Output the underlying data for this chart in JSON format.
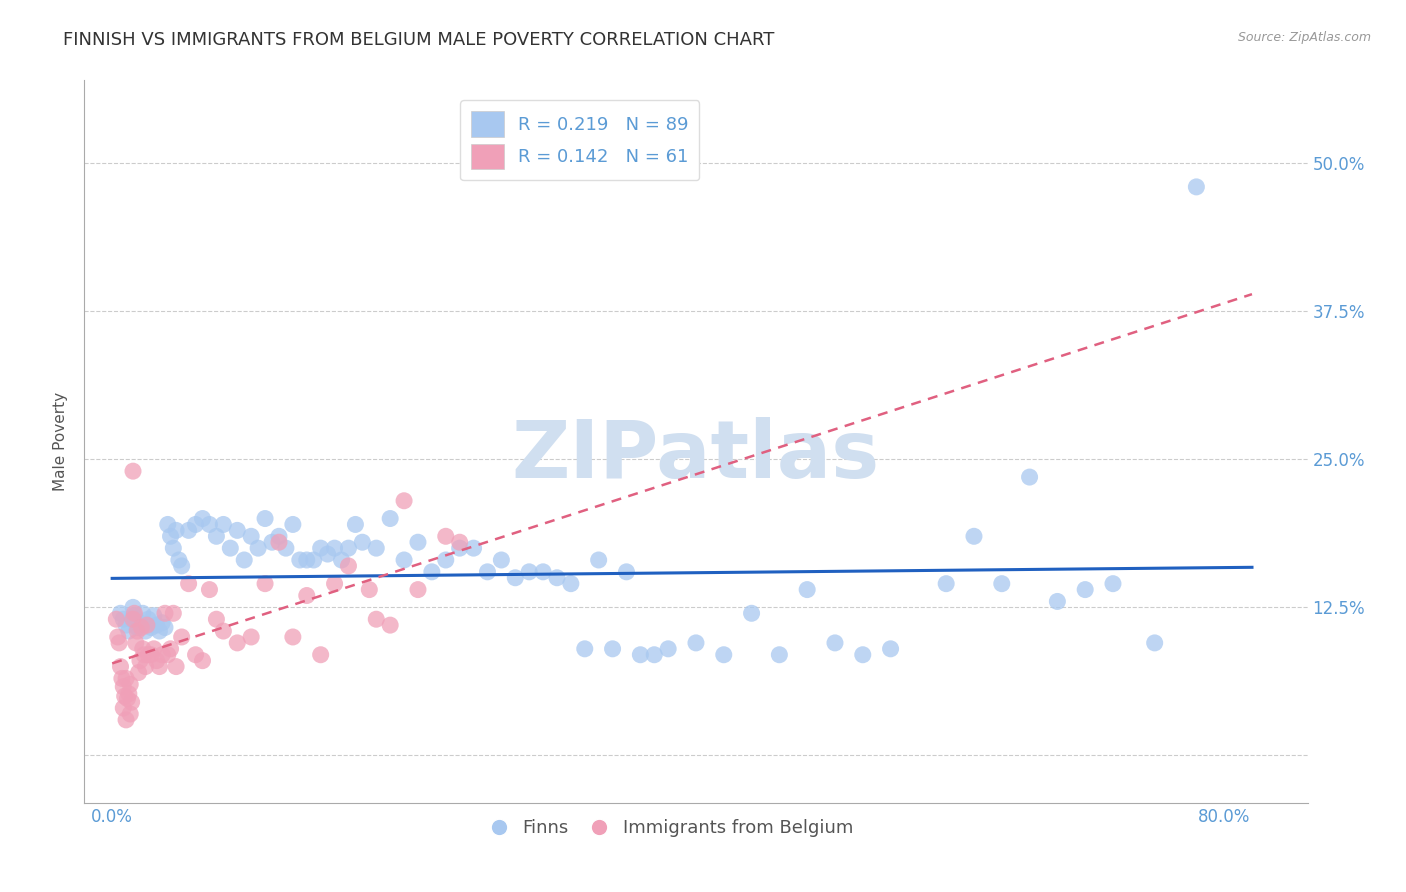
{
  "title": "FINNISH VS IMMIGRANTS FROM BELGIUM MALE POVERTY CORRELATION CHART",
  "source": "Source: ZipAtlas.com",
  "ylabel": "Male Poverty",
  "x_ticks": [
    0.0,
    0.1,
    0.2,
    0.3,
    0.4,
    0.5,
    0.6,
    0.7,
    0.8
  ],
  "y_ticks": [
    0.0,
    0.125,
    0.25,
    0.375,
    0.5
  ],
  "y_tick_labels": [
    "",
    "12.5%",
    "25.0%",
    "37.5%",
    "50.0%"
  ],
  "xlim": [
    -0.02,
    0.86
  ],
  "ylim": [
    -0.04,
    0.57
  ],
  "blue_color": "#A8C8F0",
  "pink_color": "#F0A0B8",
  "blue_line_color": "#2060C0",
  "pink_line_color": "#E06080",
  "watermark": "ZIPatlas",
  "watermark_color": "#D0DFF0",
  "title_fontsize": 13,
  "axis_label_fontsize": 11,
  "tick_fontsize": 12,
  "figsize": [
    14.06,
    8.92
  ],
  "dpi": 100,
  "blue_scatter_x": [
    0.006,
    0.008,
    0.01,
    0.012,
    0.014,
    0.015,
    0.016,
    0.018,
    0.02,
    0.022,
    0.024,
    0.026,
    0.028,
    0.03,
    0.032,
    0.034,
    0.036,
    0.038,
    0.04,
    0.042,
    0.044,
    0.046,
    0.048,
    0.05,
    0.055,
    0.06,
    0.065,
    0.07,
    0.075,
    0.08,
    0.085,
    0.09,
    0.095,
    0.1,
    0.105,
    0.11,
    0.115,
    0.12,
    0.125,
    0.13,
    0.135,
    0.14,
    0.145,
    0.15,
    0.155,
    0.16,
    0.165,
    0.17,
    0.175,
    0.18,
    0.19,
    0.2,
    0.21,
    0.22,
    0.23,
    0.24,
    0.25,
    0.26,
    0.27,
    0.28,
    0.29,
    0.3,
    0.31,
    0.32,
    0.33,
    0.34,
    0.35,
    0.36,
    0.37,
    0.38,
    0.39,
    0.4,
    0.42,
    0.44,
    0.46,
    0.48,
    0.5,
    0.52,
    0.54,
    0.56,
    0.6,
    0.62,
    0.64,
    0.66,
    0.68,
    0.7,
    0.72,
    0.75,
    0.78
  ],
  "blue_scatter_y": [
    0.12,
    0.115,
    0.11,
    0.105,
    0.115,
    0.125,
    0.118,
    0.108,
    0.112,
    0.12,
    0.105,
    0.115,
    0.108,
    0.118,
    0.11,
    0.105,
    0.112,
    0.108,
    0.195,
    0.185,
    0.175,
    0.19,
    0.165,
    0.16,
    0.19,
    0.195,
    0.2,
    0.195,
    0.185,
    0.195,
    0.175,
    0.19,
    0.165,
    0.185,
    0.175,
    0.2,
    0.18,
    0.185,
    0.175,
    0.195,
    0.165,
    0.165,
    0.165,
    0.175,
    0.17,
    0.175,
    0.165,
    0.175,
    0.195,
    0.18,
    0.175,
    0.2,
    0.165,
    0.18,
    0.155,
    0.165,
    0.175,
    0.175,
    0.155,
    0.165,
    0.15,
    0.155,
    0.155,
    0.15,
    0.145,
    0.09,
    0.165,
    0.09,
    0.155,
    0.085,
    0.085,
    0.09,
    0.095,
    0.085,
    0.12,
    0.085,
    0.14,
    0.095,
    0.085,
    0.09,
    0.145,
    0.185,
    0.145,
    0.235,
    0.13,
    0.14,
    0.145,
    0.095,
    0.48
  ],
  "pink_scatter_x": [
    0.003,
    0.004,
    0.005,
    0.006,
    0.007,
    0.008,
    0.008,
    0.009,
    0.01,
    0.01,
    0.011,
    0.012,
    0.013,
    0.013,
    0.014,
    0.015,
    0.015,
    0.016,
    0.017,
    0.018,
    0.019,
    0.02,
    0.021,
    0.022,
    0.023,
    0.024,
    0.025,
    0.026,
    0.028,
    0.03,
    0.032,
    0.034,
    0.036,
    0.038,
    0.04,
    0.042,
    0.044,
    0.046,
    0.05,
    0.055,
    0.06,
    0.065,
    0.07,
    0.075,
    0.08,
    0.09,
    0.1,
    0.11,
    0.12,
    0.13,
    0.14,
    0.15,
    0.16,
    0.17,
    0.185,
    0.19,
    0.2,
    0.21,
    0.22,
    0.24,
    0.25
  ],
  "pink_scatter_y": [
    0.115,
    0.1,
    0.095,
    0.075,
    0.065,
    0.058,
    0.04,
    0.05,
    0.03,
    0.065,
    0.048,
    0.052,
    0.035,
    0.06,
    0.045,
    0.24,
    0.115,
    0.12,
    0.095,
    0.105,
    0.07,
    0.08,
    0.108,
    0.09,
    0.085,
    0.075,
    0.11,
    0.085,
    0.085,
    0.09,
    0.08,
    0.075,
    0.085,
    0.12,
    0.085,
    0.09,
    0.12,
    0.075,
    0.1,
    0.145,
    0.085,
    0.08,
    0.14,
    0.115,
    0.105,
    0.095,
    0.1,
    0.145,
    0.18,
    0.1,
    0.135,
    0.085,
    0.145,
    0.16,
    0.14,
    0.115,
    0.11,
    0.215,
    0.14,
    0.185,
    0.18
  ]
}
